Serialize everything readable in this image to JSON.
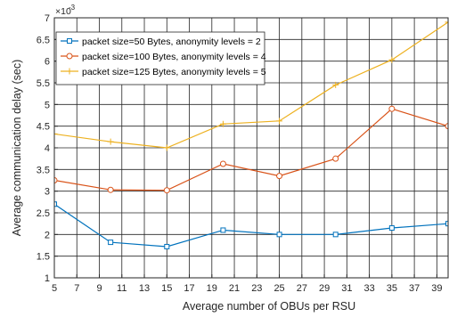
{
  "chart_data": {
    "type": "line",
    "xlabel": "Average number of OBUs per RSU",
    "ylabel": "Average communication delay (sec)",
    "y_exponent_base": "×10",
    "y_exponent_power": "-3",
    "xlim": [
      5,
      40
    ],
    "ylim": [
      1,
      7
    ],
    "x_ticks": [
      5,
      7,
      9,
      11,
      13,
      15,
      17,
      19,
      21,
      23,
      25,
      27,
      29,
      31,
      33,
      35,
      37,
      39
    ],
    "y_ticks": [
      1,
      1.5,
      2,
      2.5,
      3,
      3.5,
      4,
      4.5,
      5,
      5.5,
      6,
      6.5,
      7
    ],
    "y_tick_labels": [
      "1",
      "1.5",
      "2",
      "2.5",
      "3",
      "3.5",
      "4",
      "4.5",
      "5",
      "5.5",
      "6",
      "6.5",
      "7"
    ],
    "grid": true,
    "legend_position": "top-left",
    "series": [
      {
        "name": "packet size=50 Bytes, anonymity levels = 2",
        "color": "#0072BD",
        "marker": "square",
        "x": [
          5,
          10,
          15,
          20,
          25,
          30,
          35,
          40
        ],
        "y": [
          2.7,
          1.82,
          1.72,
          2.1,
          2.0,
          2.0,
          2.15,
          2.25
        ]
      },
      {
        "name": "packet size=100 Bytes, anonymity levels = 4",
        "color": "#D95319",
        "marker": "circle",
        "x": [
          5,
          10,
          15,
          20,
          25,
          30,
          35,
          40
        ],
        "y": [
          3.25,
          3.03,
          3.02,
          3.63,
          3.35,
          3.75,
          4.9,
          4.5
        ]
      },
      {
        "name": "packet size=125 Bytes, anonymity levels = 5",
        "color": "#EDB120",
        "marker": "plus",
        "x": [
          5,
          10,
          15,
          20,
          25,
          30,
          35,
          40
        ],
        "y": [
          4.32,
          4.14,
          4.0,
          4.55,
          4.62,
          5.45,
          6.03,
          6.9
        ]
      }
    ]
  }
}
